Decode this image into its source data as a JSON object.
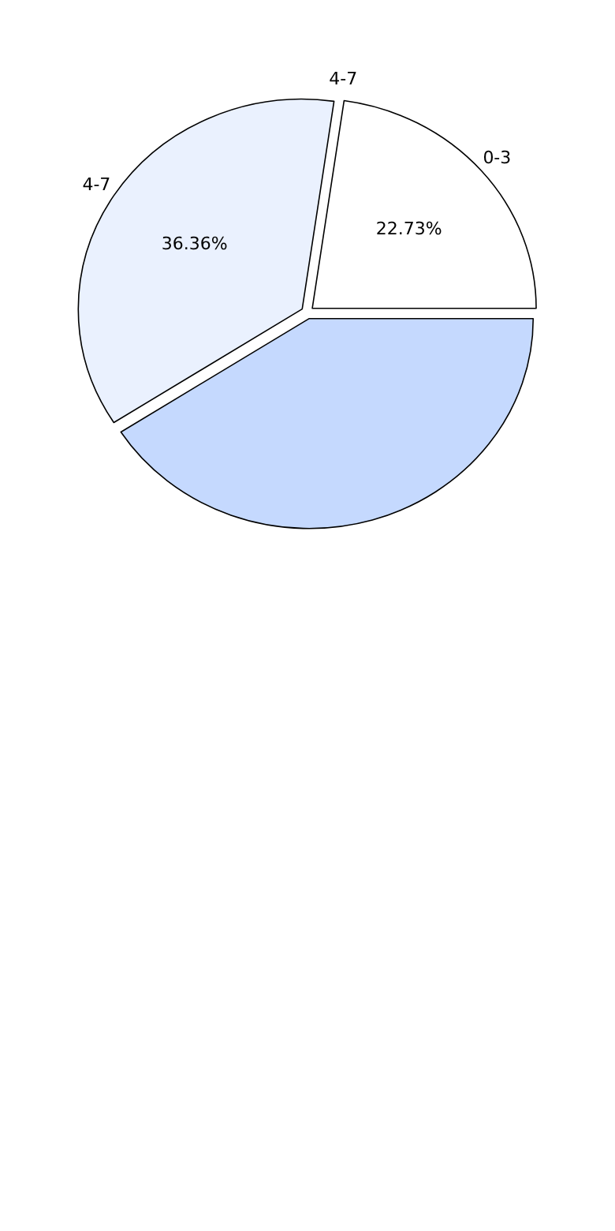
{
  "chart_data": {
    "type": "pie",
    "categories": [
      "0-3",
      "4-7",
      null
    ],
    "values": [
      22.73,
      36.36,
      40.91
    ],
    "colors": [
      "#ffffff",
      "#eaf1fe",
      "#c5d9fe"
    ],
    "value_labels": [
      "22.73%",
      "36.36%",
      null
    ],
    "annotations": [
      "4-7"
    ]
  }
}
